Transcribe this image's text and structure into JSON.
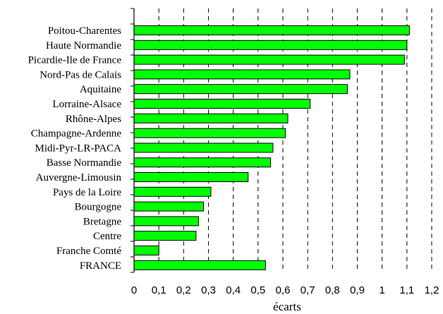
{
  "chart_data": {
    "type": "bar",
    "orientation": "horizontal",
    "categories": [
      "Poitou-Charentes",
      "Haute Normandie",
      "Picardie-Ile de France",
      "Nord-Pas de Calais",
      "Aquitaine",
      "Lorraine-Alsace",
      "Rhône-Alpes",
      "Champagne-Ardenne",
      "Midi-Pyr-LR-PACA",
      "Basse Normandie",
      "Auvergne-Limousin",
      "Pays de la Loire",
      "Bourgogne",
      "Bretagne",
      "Centre",
      "Franche Comté",
      "FRANCE"
    ],
    "values": [
      1.11,
      1.1,
      1.09,
      0.87,
      0.86,
      0.71,
      0.62,
      0.61,
      0.56,
      0.55,
      0.46,
      0.31,
      0.28,
      0.26,
      0.25,
      0.1,
      0.53
    ],
    "title": "",
    "xlabel": "écarts",
    "ylabel": "",
    "xlim": [
      0,
      1.2
    ],
    "xticks": [
      "0",
      "0,1",
      "0,2",
      "0,3",
      "0,4",
      "0,5",
      "0,6",
      "0,7",
      "0,8",
      "0,9",
      "1",
      "1,1",
      "1,2"
    ],
    "grid": "vertical-dashed",
    "bar_color": "#00ff00",
    "bar_edge_color": "#000000"
  }
}
